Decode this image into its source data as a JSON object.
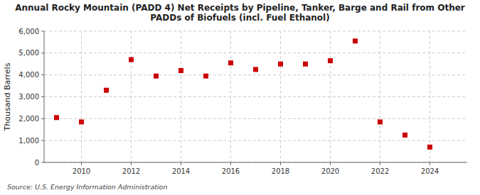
{
  "chart_data": {
    "type": "scatter",
    "title": "Annual Rocky Mountain (PADD 4) Net Receipts by Pipeline, Tanker, Barge and Rail from Other\nPADDs of Biofuels (incl. Fuel Ethanol)",
    "ylabel": "Thousand Barrels",
    "source": "Source: U.S. Energy Information Administration",
    "x": [
      2009,
      2010,
      2011,
      2012,
      2013,
      2014,
      2015,
      2016,
      2017,
      2018,
      2019,
      2020,
      2021,
      2022,
      2023,
      2024
    ],
    "values": [
      2050,
      1850,
      3300,
      4700,
      3950,
      4200,
      3950,
      4550,
      4250,
      4500,
      4500,
      4650,
      5550,
      1850,
      1250,
      700
    ],
    "color": "#cc0000",
    "marker": "square",
    "xlim": [
      2008.5,
      2025.5
    ],
    "xticks": [
      2010,
      2012,
      2014,
      2016,
      2018,
      2020,
      2022,
      2024
    ],
    "ylim": [
      0,
      6000
    ],
    "yticks": [
      0,
      {
        "value": 1000,
        "label": "1,000"
      },
      {
        "value": 2000,
        "label": "2,000"
      },
      {
        "value": 3000,
        "label": "3,000"
      },
      {
        "value": 4000,
        "label": "4,000"
      },
      {
        "value": 5000,
        "label": "5,000"
      },
      {
        "value": 6000,
        "label": "6,000"
      }
    ],
    "grid": true
  }
}
